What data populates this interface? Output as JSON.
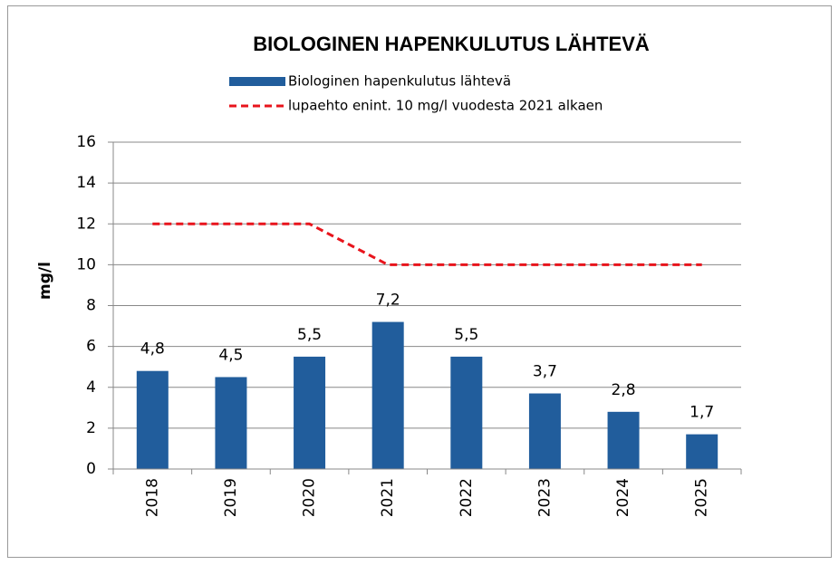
{
  "chart_data": {
    "type": "bar",
    "title": "BIOLOGINEN HAPENKULUTUS LÄHTEVÄ",
    "y_label": "mg/l",
    "categories": [
      "2018",
      "2019",
      "2020",
      "2021",
      "2022",
      "2023",
      "2024",
      "2025"
    ],
    "series": [
      {
        "name": "Biologinen hapenkulutus lähtevä",
        "type": "bar",
        "color": "#215d9c",
        "values": [
          4.8,
          4.5,
          5.5,
          7.2,
          5.5,
          3.7,
          2.8,
          1.7
        ],
        "value_labels": [
          "4,8",
          "4,5",
          "5,5",
          "7,2",
          "5,5",
          "3,7",
          "2,8",
          "1,7"
        ]
      },
      {
        "name": "lupaehto enint. 10 mg/l vuodesta 2021 alkaen",
        "type": "line",
        "color": "#e8141c",
        "values": [
          12,
          12,
          12,
          10,
          10,
          10,
          10,
          10
        ]
      }
    ],
    "ylim": [
      0,
      16
    ],
    "yticks": [
      0,
      2,
      4,
      6,
      8,
      10,
      12,
      14,
      16
    ],
    "grid": true
  }
}
